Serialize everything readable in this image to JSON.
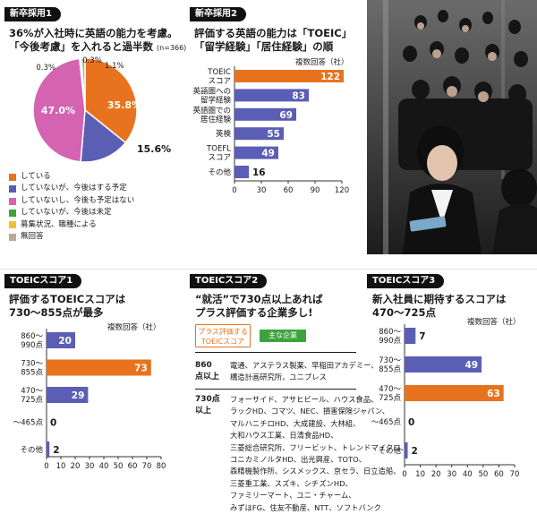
{
  "colors": {
    "orange": "#E8731E",
    "blue": "#5B5EB5",
    "pink": "#D463B1",
    "green": "#3EA33E",
    "yellow": "#F0C22E",
    "gray": "#B8AC96"
  },
  "panel1": {
    "tag": "新卒採用1",
    "title_lines": [
      "36%が入社時に英語の能力を考慮。",
      "「今後考慮」を入れると過半数"
    ],
    "n_note": "(n=366)",
    "chart_data": {
      "type": "pie",
      "slices": [
        {
          "label": "している",
          "value": 35.8,
          "display": "35.8%",
          "color": "#E8731E"
        },
        {
          "label": "していないが、今後はする予定",
          "value": 15.6,
          "display": "15.6%",
          "color": "#5B5EB5"
        },
        {
          "label": "していないし、今後も予定はない",
          "value": 47.0,
          "display": "47.0%",
          "color": "#D463B1"
        },
        {
          "label": "していないが、今後は未定",
          "value": 0.3,
          "display": "0.3%",
          "color": "#3EA33E"
        },
        {
          "label": "募集状況、職種による",
          "value": 0.3,
          "display": "0.3%",
          "color": "#F0C22E"
        },
        {
          "label": "無回答",
          "value": 1.1,
          "display": "1.1%",
          "color": "#B8AC96"
        }
      ]
    }
  },
  "panel2": {
    "tag": "新卒採用2",
    "title_lines": [
      "評価する英語の能力は「TOEIC」",
      "「留学経験」「居住経験」の順"
    ],
    "unit": "複数回答（社）",
    "chart_data": {
      "type": "bar",
      "categories": [
        [
          "TOEIC",
          "スコア"
        ],
        [
          "英語圏への",
          "留学経験"
        ],
        [
          "英語圏での",
          "居住経験"
        ],
        [
          "英検"
        ],
        [
          "TOEFL",
          "スコア"
        ],
        [
          "その他"
        ]
      ],
      "values": [
        122,
        83,
        69,
        55,
        49,
        16
      ],
      "highlight_index": 0,
      "xlim": [
        0,
        120
      ],
      "xticks": [
        0,
        30,
        60,
        90,
        120
      ]
    }
  },
  "panel3": {
    "tag": "TOEICスコア1",
    "title_lines": [
      "評価するTOEICスコアは",
      "730～855点が最多"
    ],
    "unit": "複数回答（社）",
    "chart_data": {
      "type": "bar",
      "categories": [
        [
          "860～",
          "990点"
        ],
        [
          "730～",
          "855点"
        ],
        [
          "470～",
          "725点"
        ],
        [
          "～465点"
        ],
        [
          "その他"
        ]
      ],
      "values": [
        20,
        73,
        29,
        0,
        2
      ],
      "highlight_index": 1,
      "xlim": [
        0,
        80
      ],
      "xticks": [
        0,
        10,
        20,
        30,
        40,
        50,
        60,
        70,
        80
      ]
    }
  },
  "panel4": {
    "tag": "TOEICスコア2",
    "title_lines": [
      "“就活”で730点以上あれば",
      "プラス評価する企業多し!"
    ],
    "btn_score": "プラス評価する\nTOEICスコア",
    "btn_company": "主な企業",
    "row1_label": "860\n点以上",
    "row1_companies": "電通、アステラス製薬、早稲田アカデミー、\n構造計画研究所、ユニプレス",
    "row2_label": "730点\n以上",
    "row2_companies": "フォーサイド、アサヒビール、ハウス食品、\nラックHD、コマツ、NEC、損害保険ジャパン、\nマルハニチロHD、大成建設、大林組、\n大和ハウス工業、日清食品HD、\n三菱総合研究所、フリービット、トレンドマイクロ、\nコニカミノルタHD、出光興産、TOTO、\n森精機製作所、シスメックス、京セラ、日立造船、\n三菱重工業、スズキ、シチズンHD、\nファミリーマート、ユニ・チャーム、\nみずほFG、住友不動産、NTT、ソフトバンク"
  },
  "panel5": {
    "tag": "TOEICスコア3",
    "title_lines": [
      "新入社員に期待するスコアは",
      "470～725点"
    ],
    "unit": "複数回答（社）",
    "chart_data": {
      "type": "bar",
      "categories": [
        [
          "860～",
          "990点"
        ],
        [
          "730～",
          "855点"
        ],
        [
          "470～",
          "725点"
        ],
        [
          "～465点"
        ],
        [
          "その他"
        ]
      ],
      "values": [
        7,
        49,
        63,
        0,
        2
      ],
      "highlight_index": 2,
      "xlim": [
        0,
        70
      ],
      "xticks": [
        0,
        10,
        20,
        30,
        40,
        50,
        60,
        70
      ]
    }
  }
}
